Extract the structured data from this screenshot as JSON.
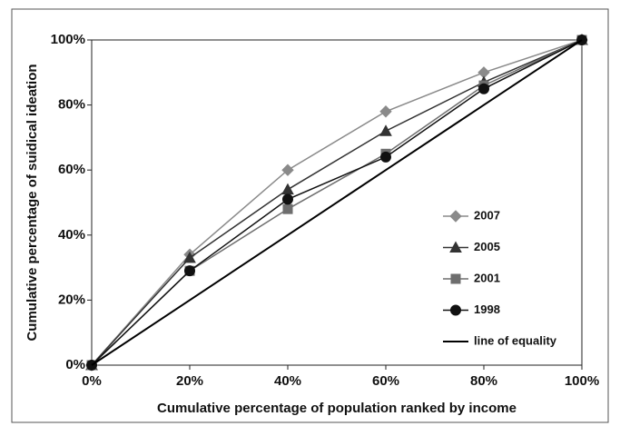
{
  "chart_data": {
    "type": "line",
    "x_label": "Cumulative percentage of population ranked by income",
    "y_label": "Cumulative percentage of suidical ideation",
    "x": [
      0,
      20,
      40,
      60,
      80,
      100
    ],
    "xlim": [
      0,
      100
    ],
    "xticks": [
      {
        "value": 0,
        "label": "0%"
      },
      {
        "value": 20,
        "label": "20%"
      },
      {
        "value": 40,
        "label": "40%"
      },
      {
        "value": 60,
        "label": "60%"
      },
      {
        "value": 80,
        "label": "80%"
      },
      {
        "value": 100,
        "label": "100%"
      }
    ],
    "ylim": [
      0,
      100
    ],
    "yticks": [
      {
        "value": 0,
        "label": "0%"
      },
      {
        "value": 20,
        "label": "20%"
      },
      {
        "value": 40,
        "label": "40%"
      },
      {
        "value": 60,
        "label": "60%"
      },
      {
        "value": 80,
        "label": "80%"
      },
      {
        "value": 100,
        "label": "100%"
      }
    ],
    "legend": "right",
    "series": [
      {
        "name": "2007",
        "color": "#8a8a8a",
        "marker": "diamond",
        "values": [
          0,
          34,
          60,
          78,
          90,
          100
        ]
      },
      {
        "name": "2005",
        "color": "#333333",
        "marker": "triangle",
        "values": [
          0,
          33,
          54,
          72,
          87,
          100
        ]
      },
      {
        "name": "2001",
        "color": "#6e6e6e",
        "marker": "square",
        "values": [
          0,
          29,
          48,
          65,
          86,
          100
        ]
      },
      {
        "name": "1998",
        "color": "#111111",
        "marker": "circle",
        "values": [
          0,
          29,
          51,
          64,
          85,
          100
        ]
      },
      {
        "name": "line of equality",
        "color": "#000000",
        "marker": "none",
        "values": [
          0,
          20,
          40,
          60,
          80,
          100
        ]
      }
    ]
  }
}
